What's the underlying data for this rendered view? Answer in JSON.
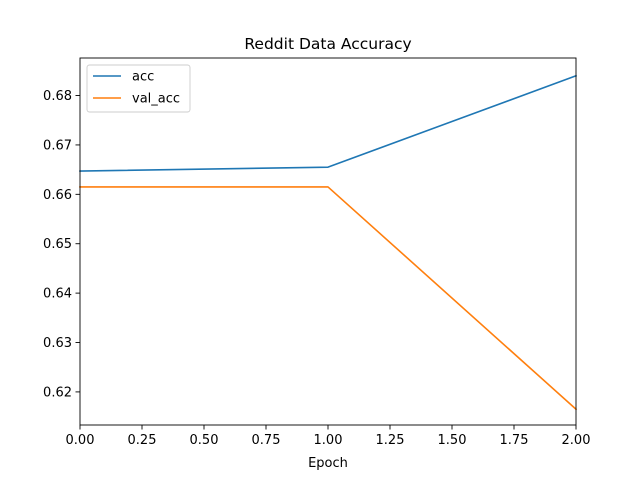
{
  "chart_data": {
    "type": "line",
    "title": "Reddit Data Accuracy",
    "xlabel": "Epoch",
    "ylabel": "",
    "x": [
      0,
      1,
      2
    ],
    "xlim": [
      0,
      2
    ],
    "ylim": [
      0.6133,
      0.6876
    ],
    "xticks": [
      0.0,
      0.25,
      0.5,
      0.75,
      1.0,
      1.25,
      1.5,
      1.75,
      2.0
    ],
    "xtick_labels": [
      "0.00",
      "0.25",
      "0.50",
      "0.75",
      "1.00",
      "1.25",
      "1.50",
      "1.75",
      "2.00"
    ],
    "yticks": [
      0.62,
      0.63,
      0.64,
      0.65,
      0.66,
      0.67,
      0.68
    ],
    "ytick_labels": [
      "0.62",
      "0.63",
      "0.64",
      "0.65",
      "0.66",
      "0.67",
      "0.68"
    ],
    "grid": false,
    "legend": "upper-left",
    "series": [
      {
        "name": "acc",
        "values": [
          0.6647,
          0.6655,
          0.684
        ],
        "color": "#1f77b4"
      },
      {
        "name": "val_acc",
        "values": [
          0.6615,
          0.6615,
          0.6165
        ],
        "color": "#ff7f0e"
      }
    ]
  }
}
